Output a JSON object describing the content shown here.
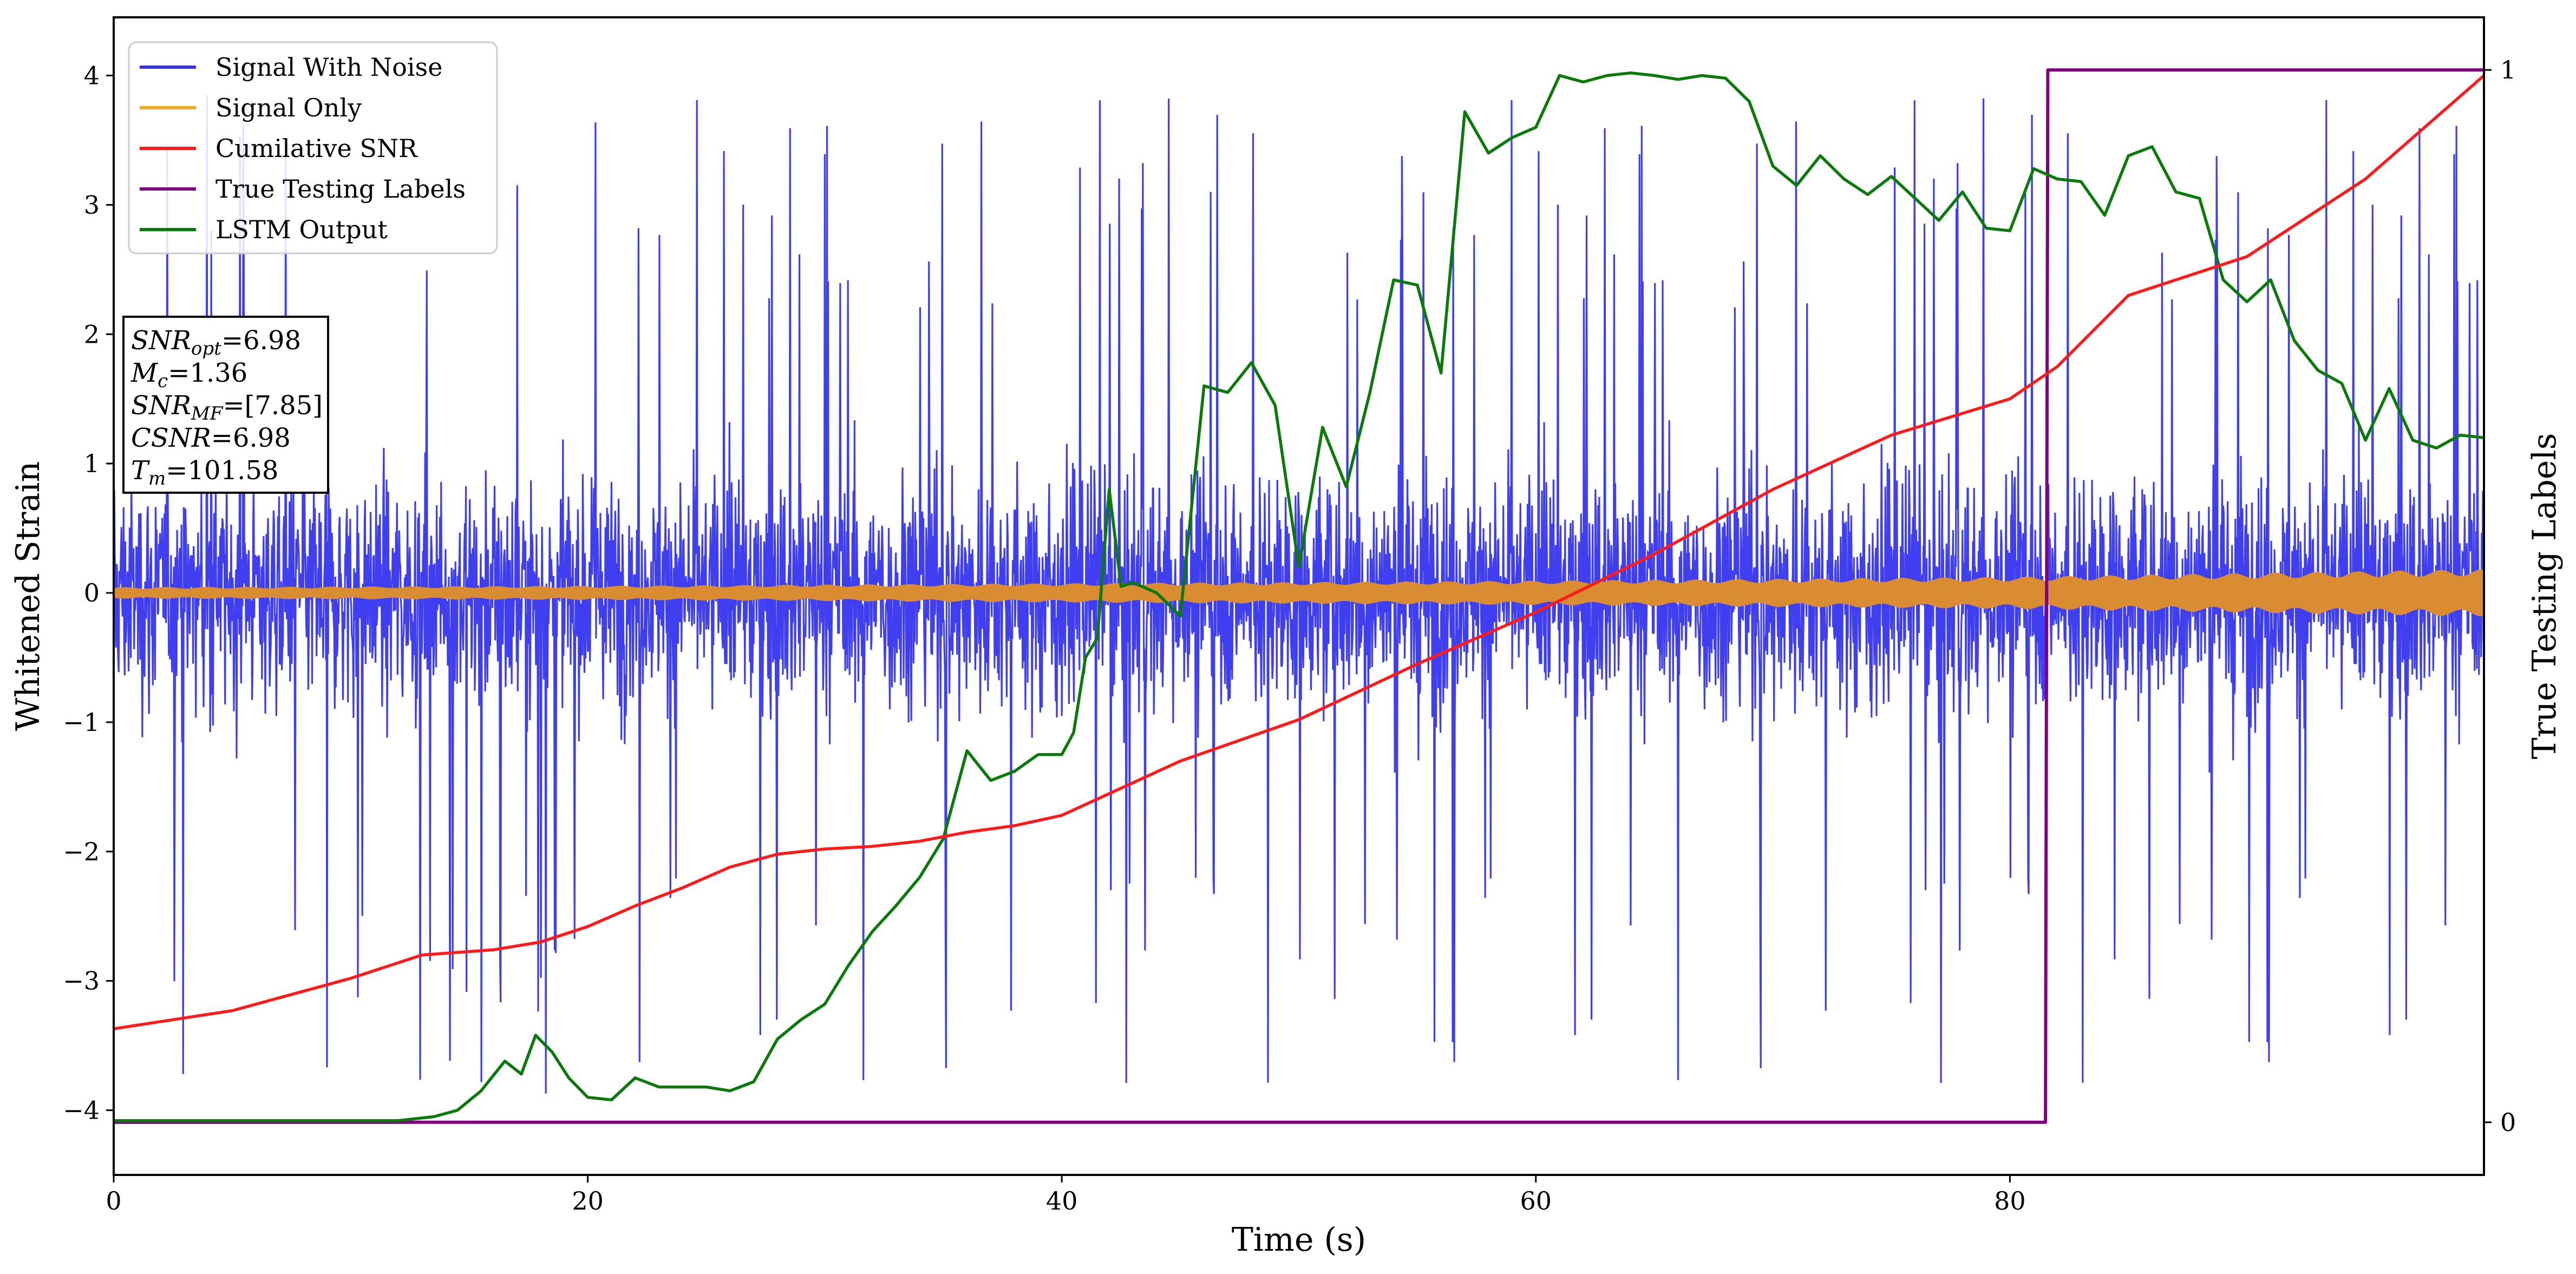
{
  "chart_data": {
    "type": "line",
    "xlabel": "Time (s)",
    "ylabel": "Whitened Strain",
    "ylabel_right": "True Testing Labels",
    "xlim": [
      0,
      100
    ],
    "ylim": [
      -4.5,
      4.45
    ],
    "ylim_right": [
      -0.05,
      1.05
    ],
    "x_ticks": [
      0,
      20,
      40,
      60,
      80
    ],
    "y_ticks": [
      -4,
      -3,
      -2,
      -1,
      0,
      1,
      2,
      3,
      4
    ],
    "y_ticks_right": [
      0,
      1
    ],
    "legend_position": "top-left",
    "grid": false,
    "series": [
      {
        "name": "Signal With Noise",
        "color": "#3535f0",
        "axis": "left",
        "style": "dense-noise",
        "typical_range": [
          -1.6,
          1.6
        ],
        "peak_range": [
          -4.0,
          4.1
        ]
      },
      {
        "name": "Signal Only",
        "color": "#f5a623",
        "axis": "left",
        "style": "band",
        "envelope": {
          "x": [
            0,
            20,
            40,
            60,
            80,
            90,
            100
          ],
          "amplitude": [
            0.04,
            0.05,
            0.07,
            0.09,
            0.12,
            0.15,
            0.18
          ]
        }
      },
      {
        "name": "Cumilative SNR",
        "color": "#ff1a1a",
        "axis": "left",
        "x": [
          0,
          5,
          10,
          13,
          16,
          18,
          20,
          22,
          24,
          26,
          28,
          30,
          32,
          34,
          36,
          38,
          40,
          45,
          50,
          55,
          60,
          65,
          70,
          75,
          80,
          82,
          85,
          90,
          95,
          100
        ],
        "y": [
          -3.37,
          -3.23,
          -2.98,
          -2.8,
          -2.76,
          -2.7,
          -2.58,
          -2.42,
          -2.28,
          -2.12,
          -2.02,
          -1.98,
          -1.96,
          -1.92,
          -1.85,
          -1.8,
          -1.72,
          -1.3,
          -0.98,
          -0.55,
          -0.15,
          0.3,
          0.8,
          1.22,
          1.5,
          1.75,
          2.3,
          2.6,
          3.2,
          4.0
        ]
      },
      {
        "name": "True Testing Labels",
        "color": "#800080",
        "axis": "right",
        "x": [
          0,
          81.5,
          81.6,
          100
        ],
        "y": [
          0,
          0,
          1,
          1
        ]
      },
      {
        "name": "LSTM Output",
        "color": "#0a7a0a",
        "axis": "left",
        "x": [
          0,
          12,
          13.5,
          14.5,
          15.5,
          16.5,
          17.2,
          17.8,
          18.5,
          19.2,
          20,
          21,
          22,
          23,
          24,
          25,
          26,
          27,
          28,
          29,
          30,
          31,
          32,
          33,
          34,
          35,
          36,
          37,
          38,
          39,
          40,
          40.5,
          41,
          41.5,
          42,
          42.5,
          43,
          44,
          45,
          46,
          47,
          48,
          49,
          50,
          51,
          52,
          53,
          54,
          55,
          56,
          57,
          58,
          59,
          60,
          61,
          62,
          63,
          64,
          65,
          66,
          67,
          68,
          69,
          70,
          71,
          72,
          73,
          74,
          75,
          76,
          77,
          78,
          79,
          80,
          81,
          82,
          83,
          84,
          85,
          86,
          87,
          88,
          89,
          90,
          91,
          92,
          93,
          94,
          95,
          96,
          97,
          98,
          99,
          100
        ],
        "y": [
          -4.08,
          -4.08,
          -4.05,
          -4.0,
          -3.85,
          -3.62,
          -3.72,
          -3.42,
          -3.55,
          -3.75,
          -3.9,
          -3.92,
          -3.75,
          -3.82,
          -3.82,
          -3.82,
          -3.85,
          -3.78,
          -3.45,
          -3.3,
          -3.18,
          -2.88,
          -2.62,
          -2.42,
          -2.2,
          -1.9,
          -1.22,
          -1.45,
          -1.38,
          -1.25,
          -1.25,
          -1.08,
          -0.5,
          -0.35,
          0.8,
          0.05,
          0.08,
          0.0,
          -0.18,
          1.6,
          1.55,
          1.78,
          1.45,
          0.2,
          1.28,
          0.82,
          1.55,
          2.42,
          2.38,
          1.7,
          3.72,
          3.4,
          3.52,
          3.6,
          4.0,
          3.95,
          4.0,
          4.02,
          4.0,
          3.97,
          4.0,
          3.98,
          3.8,
          3.3,
          3.15,
          3.38,
          3.2,
          3.08,
          3.22,
          3.05,
          2.88,
          3.1,
          2.82,
          2.8,
          3.28,
          3.2,
          3.18,
          2.92,
          3.38,
          3.45,
          3.1,
          3.05,
          2.42,
          2.25,
          2.42,
          1.95,
          1.72,
          1.62,
          1.18,
          1.58,
          1.18,
          1.12,
          1.22,
          1.2
        ]
      }
    ]
  },
  "info_box": {
    "snr_opt_label": "SNR",
    "snr_opt_sub": "opt",
    "snr_opt_value": "=6.98",
    "mc_label": "M",
    "mc_sub": "c",
    "mc_value": "=1.36",
    "snr_mf_label": "SNR",
    "snr_mf_sub": "MF",
    "snr_mf_value": "=[7.85]",
    "csnr_label": "CSNR",
    "csnr_value": "=6.98",
    "tm_label": "T",
    "tm_sub": "m",
    "tm_value": "=101.58"
  }
}
